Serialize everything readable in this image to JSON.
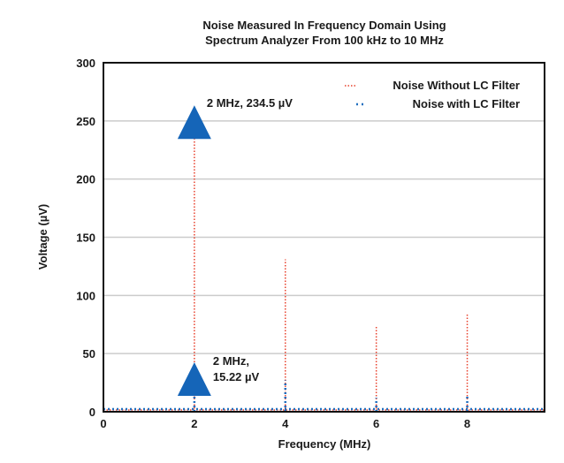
{
  "chart_data": {
    "type": "line",
    "title": "Noise Measured In Frequency Domain Using\nSpectrum Analyzer From 100 kHz to 10 MHz",
    "xlabel": "Frequency (MHz)",
    "ylabel": "Voltage (µV)",
    "xlim": [
      0,
      9.7
    ],
    "ylim": [
      0,
      300
    ],
    "xticks": [
      "0",
      "2",
      "4",
      "6",
      "8"
    ],
    "yticks": [
      "0",
      "50",
      "100",
      "150",
      "200",
      "250",
      "300"
    ],
    "grid": "horizontal",
    "legend_position": "top-right",
    "series": [
      {
        "name": "Noise Without LC Filter",
        "color": "#e8412c",
        "style": "dotted",
        "x": [
          0,
          2,
          4,
          6,
          8
        ],
        "values": [
          3,
          234.5,
          131,
          73,
          84
        ]
      },
      {
        "name": "Noise with LC Filter",
        "color": "#1f6fbf",
        "style": "dotted",
        "x": [
          0,
          2,
          4,
          6,
          8
        ],
        "values": [
          4,
          15.22,
          27,
          12,
          15
        ]
      }
    ],
    "annotations": [
      {
        "text": "2 MHz, 234.5 µV",
        "x": 2,
        "y": 234.5,
        "marker": "triangle",
        "color": "#1565b8"
      },
      {
        "text_lines": [
          "2 MHz,",
          "15.22 µV"
        ],
        "x": 2,
        "y": 15.22,
        "marker": "triangle",
        "color": "#1565b8"
      }
    ]
  }
}
